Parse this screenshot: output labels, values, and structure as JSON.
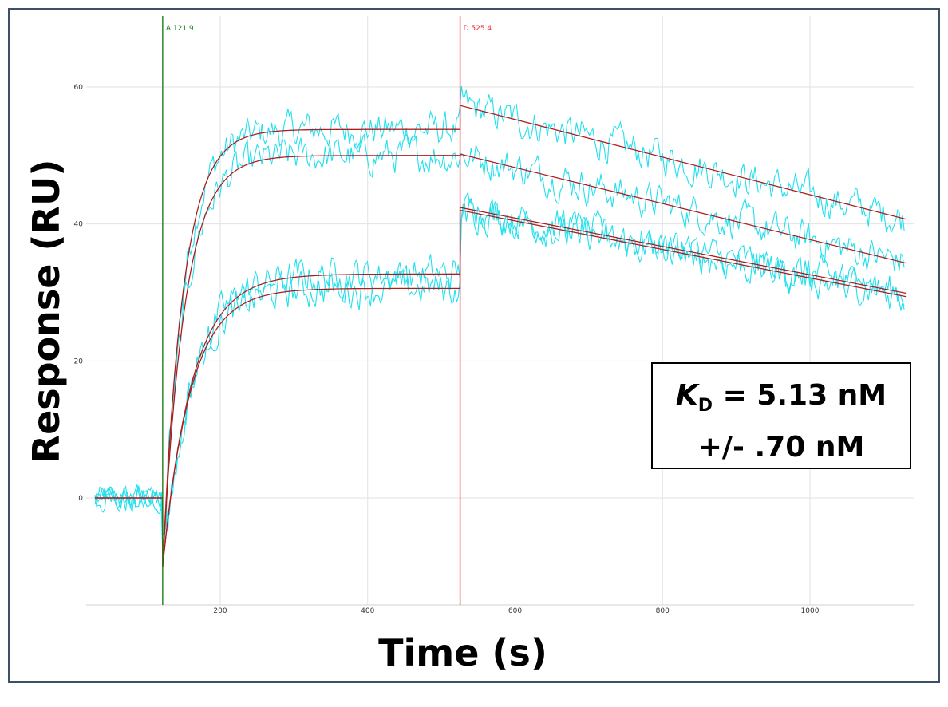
{
  "chart_data": {
    "type": "line",
    "title": "",
    "xlabel": "Time (s)",
    "ylabel": "Response (RU)",
    "xlim": [
      30,
      1135
    ],
    "ylim": [
      -15,
      70
    ],
    "xticks": [
      200,
      400,
      600,
      800,
      1000
    ],
    "yticks": [
      0,
      20,
      40,
      60
    ],
    "grid": true,
    "markers": [
      {
        "label": "A 121.9",
        "x": 121.9,
        "color": "#1a7f1a"
      },
      {
        "label": "D 525.4",
        "x": 525.4,
        "color": "#e8262a"
      }
    ],
    "association_start": 121.9,
    "dissociation_start": 525.4,
    "x_end": 1130,
    "fit_color": "#d62728",
    "data_color": "#22e0ee",
    "curves": [
      {
        "plateau": 53.8,
        "dissoc_end": 40.7,
        "dissoc_start": 57.3,
        "tau": 28
      },
      {
        "plateau": 50.0,
        "dissoc_end": 34.3,
        "dissoc_start": 50.2,
        "tau": 30
      },
      {
        "plateau": 32.7,
        "dissoc_end": 29.9,
        "dissoc_start": 42.4,
        "tau": 40
      },
      {
        "plateau": 30.6,
        "dissoc_end": 29.4,
        "dissoc_start": 42.0,
        "tau": 38
      }
    ],
    "annotation": {
      "symbol": "K",
      "subscript": "D",
      "line1_rest": " = 5.13 nM",
      "line2": "+/- .70 nM"
    }
  }
}
